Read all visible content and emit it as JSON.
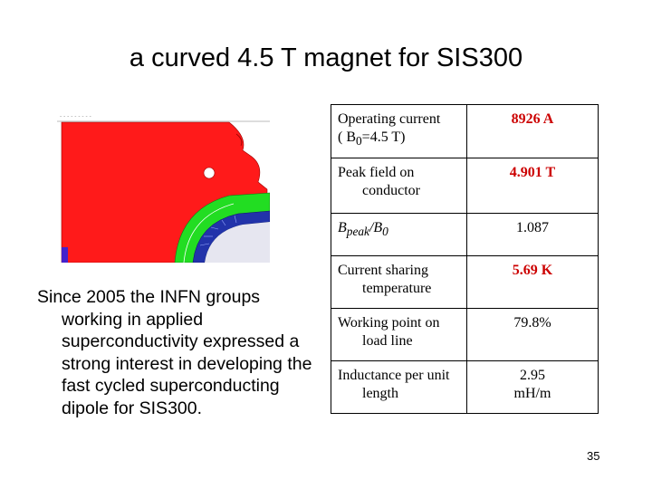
{
  "slide": {
    "title": "a curved 4.5 T magnet for SIS300",
    "body_text": "Since 2005 the INFN groups working in applied superconductivity expressed a strong interest in developing the fast cycled superconducting dipole for SIS300.",
    "page_number": "35"
  },
  "figure": {
    "toolbar_text": "- - - - - - - - -",
    "colors": {
      "iron": "#ff1a1a",
      "collar": "#22dd22",
      "coil": "#2233aa",
      "mesh": "#cccccc"
    }
  },
  "table": {
    "rows": [
      {
        "label": "Operating current",
        "label2": "( B",
        "label2_sub": "0",
        "label2_tail": "=4.5 T)",
        "value": "8926 A",
        "value_red": true
      },
      {
        "label": "Peak field on conductor",
        "value": "4.901 T",
        "value_red": true
      },
      {
        "label_main": "B",
        "label_sub1": "peak",
        "label_mid": "/B",
        "label_sub2": "0",
        "value": "1.087",
        "value_red": false
      },
      {
        "label": "Current sharing temperature",
        "value": "5.69 K",
        "value_red": true
      },
      {
        "label": "Working point on load line",
        "value": "79.8%",
        "value_red": false
      },
      {
        "label": "Inductance per unit length",
        "value": "2.95",
        "value_line2": "mH/m",
        "value_red": false
      }
    ]
  }
}
